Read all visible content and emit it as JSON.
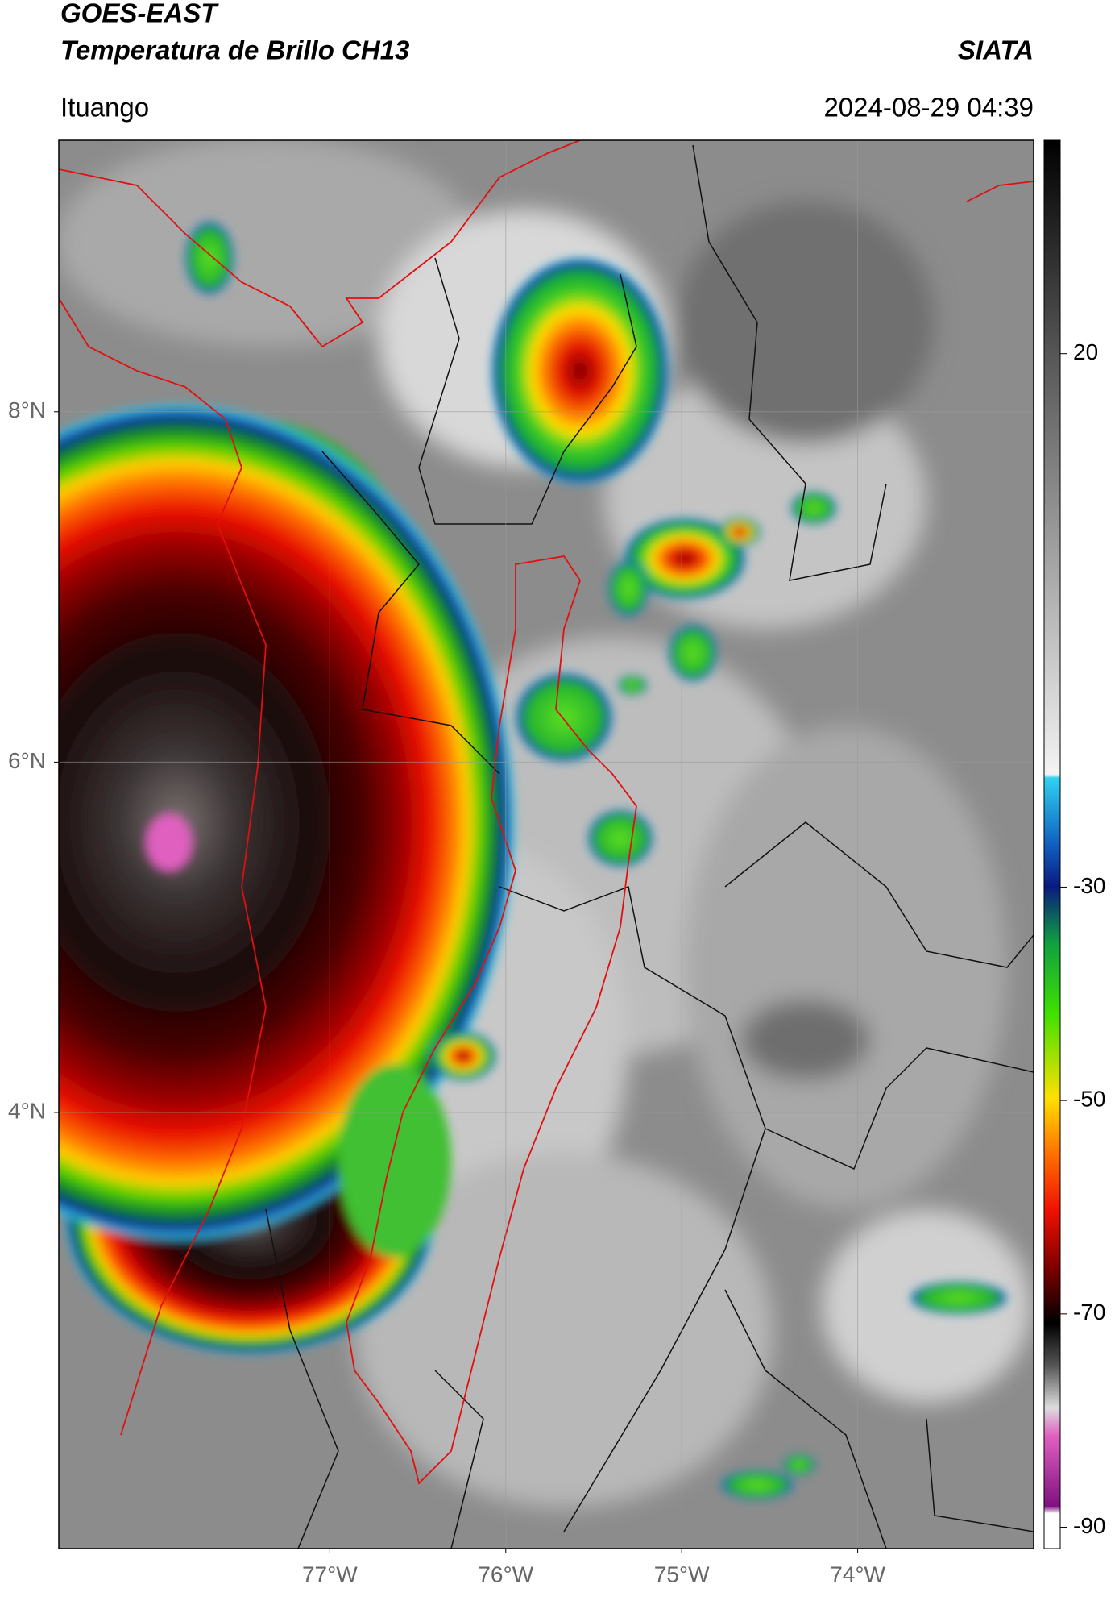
{
  "header": {
    "title": "GOES-EAST",
    "subtitle": "Temperatura de Brillo CH13",
    "source": "SIATA",
    "location": "Ituango",
    "datetime": "2024-08-29 04:39"
  },
  "map": {
    "xlim": [
      -78.54,
      -73.0
    ],
    "ylim": [
      1.51,
      9.55
    ],
    "xticks": [
      {
        "value": -77,
        "label": "77°W"
      },
      {
        "value": -76,
        "label": "76°W"
      },
      {
        "value": -75,
        "label": "75°W"
      },
      {
        "value": -74,
        "label": "74°W"
      }
    ],
    "yticks": [
      {
        "value": 8,
        "label": "8°N"
      },
      {
        "value": 6,
        "label": "6°N"
      },
      {
        "value": 4,
        "label": "4°N"
      }
    ],
    "grid": true
  },
  "colorbar": {
    "lim": [
      -92,
      40
    ],
    "ticks": [
      20,
      -30,
      -50,
      -70,
      -90
    ]
  }
}
